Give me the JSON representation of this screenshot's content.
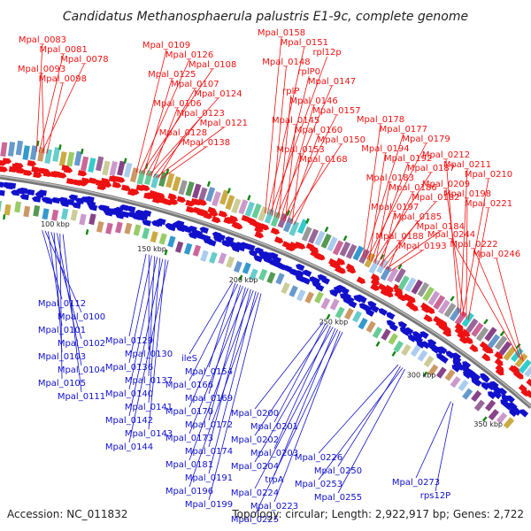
{
  "title": "Candidatus Methanosphaerula palustris E1-9c, complete genome",
  "accession": "Accession: NC_011832",
  "topology": "Topology: circular; Length: 2,922,917 bp; Genes: 2,722",
  "colors": {
    "forward": "#ee1111",
    "reverse": "#1111cc",
    "backbone": "#777777",
    "marker": "#118811"
  },
  "scale_ticks": [
    "100 kbp",
    "150 kbp",
    "200 kbp",
    "250 kbp",
    "300 kbp",
    "350 kbp"
  ],
  "forward_labels": [
    "Mpal_0083",
    "Mpal_0081",
    "Mpal_0078",
    "Mpal_0093",
    "Mpal_0098",
    "Mpal_0109",
    "Mpal_0126",
    "Mpal_0108",
    "Mpal_0125",
    "Mpal_0107",
    "Mpal_0124",
    "Mpal_0106",
    "Mpal_0123",
    "Mpal_0121",
    "Mpal_0128",
    "Mpal_0138",
    "Mpal_0158",
    "Mpal_0151",
    "rpl12p",
    "Mpal_0148",
    "rplP0",
    "Mpal_0147",
    "rplP",
    "Mpal_0146",
    "Mpal_0157",
    "Mpal_0145",
    "Mpal_0160",
    "Mpal_0150",
    "Mpal_0153",
    "Mpal_0168",
    "Mpal_0178",
    "Mpal_0177",
    "Mpal_0179",
    "Mpal_0194",
    "Mpal_0192",
    "Mpal_0187",
    "Mpal_0183",
    "Mpal_0186",
    "Mpal_0182",
    "Mpal_0197",
    "Mpal_0185",
    "Mpal_0184",
    "Mpal_0188",
    "Mpal_0193",
    "Mpal_0212",
    "Mpal_0211",
    "Mpal_0210",
    "Mpal_0209",
    "Mpal_0198",
    "Mpal_0221",
    "Mpal_0244",
    "Mpal_0222",
    "Mpal_0246"
  ],
  "reverse_labels": [
    "Mpal_0112",
    "Mpal_0100",
    "Mpal_0101",
    "Mpal_0102",
    "Mpal_0103",
    "Mpal_0104",
    "Mpal_0105",
    "Mpal_0111",
    "Mpal_0129",
    "Mpal_0130",
    "Mpal_0136",
    "Mpal_0137",
    "Mpal_0140",
    "Mpal_0141",
    "Mpal_0142",
    "Mpal_0143",
    "Mpal_0144",
    "ileS",
    "Mpal_0154",
    "Mpal_0166",
    "Mpal_0169",
    "Mpal_0170",
    "Mpal_0172",
    "Mpal_0173",
    "Mpal_0174",
    "Mpal_0181",
    "Mpal_0191",
    "Mpal_0196",
    "Mpal_0199",
    "Mpal_0200",
    "Mpal_0201",
    "Mpal_0202",
    "Mpal_0203",
    "Mpal_0204",
    "trpA",
    "Mpal_0224",
    "Mpal_0223",
    "Mpal_0225",
    "Mpal_0226",
    "Mpal_0250",
    "Mpal_0253",
    "Mpal_0255",
    "Mpal_0273",
    "rps12P"
  ]
}
